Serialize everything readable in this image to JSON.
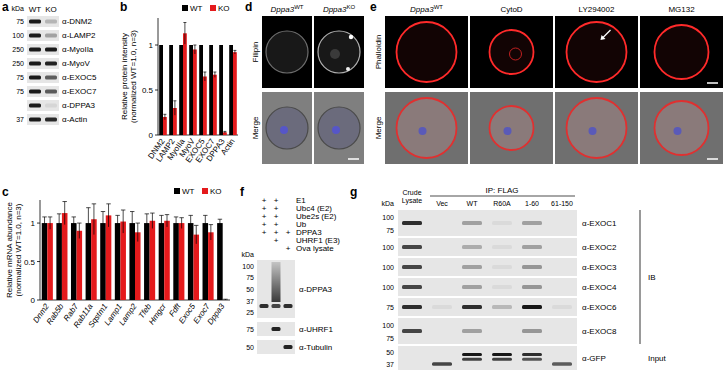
{
  "chart_data": [
    {
      "type": "bar",
      "categories": [
        "DNM2",
        "LAMP2",
        "MyoIIa",
        "MyoV",
        "EXOC5",
        "EXOC7",
        "DPPA3",
        "Actin"
      ],
      "series": [
        {
          "name": "WT",
          "color": "#000000",
          "values": [
            1,
            1,
            1,
            1,
            1,
            1,
            1,
            1
          ]
        },
        {
          "name": "KO",
          "color": "#e41a1c",
          "values": [
            0.2,
            0.3,
            1.13,
            0.95,
            0.65,
            0.67,
            0.03,
            0.92
          ],
          "errors": [
            0.03,
            0.08,
            0.12,
            0.05,
            0.05,
            0.03,
            0.01,
            0.02
          ]
        }
      ],
      "y_label": [
        "Relative protein intensity",
        "(normalized WT=1.0, n=3)"
      ],
      "ylim": [
        0,
        1.3
      ],
      "yticks": [
        0,
        0.5,
        1
      ],
      "legend": "top-right"
    },
    {
      "type": "bar",
      "categories": [
        "Dnm2",
        "Rab5b",
        "Rab7",
        "Rab11a",
        "Sqstm1",
        "Lamp1",
        "Lamp2",
        "Tfeb",
        "Hmgcr",
        "Fdft",
        "Exoc5",
        "Exoc7",
        "Dppa3"
      ],
      "series": [
        {
          "name": "WT",
          "color": "#000000",
          "values": [
            1,
            1,
            1,
            1,
            1,
            1,
            1,
            1,
            1,
            1,
            1,
            1,
            1
          ],
          "errors": [
            0.08,
            0.12,
            0.08,
            0.2,
            0.15,
            0.1,
            0.15,
            0.12,
            0.1,
            0.08,
            0.1,
            0.1,
            0.05
          ]
        },
        {
          "name": "KO",
          "color": "#e41a1c",
          "values": [
            1.0,
            1.13,
            0.9,
            1.05,
            1.1,
            1.02,
            0.88,
            1.03,
            1.03,
            1.0,
            0.85,
            0.88,
            0.0
          ],
          "errors": [
            0.08,
            0.15,
            0.1,
            0.2,
            0.15,
            0.15,
            0.12,
            0.1,
            0.08,
            0.07,
            0.12,
            0.1,
            0.01
          ]
        }
      ],
      "y_label": [
        "Relative mRNA abundance",
        "(normalized WT=1.0, n=3)"
      ],
      "ylim": [
        0,
        1.3
      ],
      "yticks": [
        0,
        0.5,
        1
      ],
      "legend": "top-right"
    }
  ],
  "figure": {
    "panel_labels": [
      "a",
      "b",
      "c",
      "d",
      "e",
      "f",
      "g"
    ],
    "a": {
      "kda": "kDa",
      "lanes": [
        "WT",
        "KO"
      ],
      "rows": [
        {
          "marker": 75,
          "antibody": "α-DNM2"
        },
        {
          "marker": 100,
          "antibody": "α-LAMP2"
        },
        {
          "marker": 250,
          "antibody": "α-MyoIIa"
        },
        {
          "marker": 250,
          "antibody": "α-MyoV"
        },
        {
          "marker": 75,
          "antibody": "α-EXOC5"
        },
        {
          "marker": 75,
          "antibody": "α-EXOC7"
        },
        {
          "marker": null,
          "antibody": "α-DPPA3"
        },
        {
          "marker": 37,
          "antibody": "α-Actin"
        }
      ]
    },
    "d": {
      "columns": [
        {
          "gene": "Dppa3",
          "sup": "WT"
        },
        {
          "gene": "Dppa3",
          "sup": "KO"
        }
      ],
      "rows": [
        "Filipin",
        "Merge"
      ]
    },
    "e": {
      "columns": [
        {
          "gene": "Dppa3",
          "sup": "WT"
        },
        {
          "text": "CytoD"
        },
        {
          "text": "LY294002"
        },
        {
          "text": "MG132"
        }
      ],
      "rows": [
        "Phalloidin",
        "Merge"
      ]
    },
    "f": {
      "conditions": [
        {
          "name": "E1",
          "lanes": [
            "+",
            "+",
            null
          ]
        },
        {
          "name": "Ubc4 (E2)",
          "lanes": [
            "+",
            "+",
            null
          ]
        },
        {
          "name": "Ube2s (E2)",
          "lanes": [
            "+",
            "+",
            null
          ]
        },
        {
          "name": "Ub",
          "lanes": [
            "+",
            "+",
            null
          ]
        },
        {
          "name": "DPPA3",
          "lanes": [
            "+",
            "+",
            "+"
          ]
        },
        {
          "name": "UHRF1 (E3)",
          "lanes": [
            null,
            "+",
            null
          ]
        },
        {
          "name": "Ova lysate",
          "lanes": [
            null,
            null,
            "+"
          ]
        }
      ],
      "kda": "kDa",
      "blots": [
        {
          "antibody": "α-DPPA3",
          "markers": [
            100,
            75,
            50,
            37,
            25
          ]
        },
        {
          "antibody": "α-UHRF1",
          "markers": [
            75
          ]
        },
        {
          "antibody": "α-Tubulin",
          "markers": [
            50
          ]
        }
      ]
    },
    "g": {
      "ip": "IP: FLAG",
      "crude": [
        "Crude",
        "Lysate"
      ],
      "lanes": [
        "Vec",
        "WT",
        "R60A",
        "1-60",
        "61-150"
      ],
      "kda": "kDa",
      "blots": [
        {
          "antibody": "α-EXOC1",
          "markers": [
            100,
            75
          ]
        },
        {
          "antibody": "α-EXOC2",
          "markers": [
            100
          ]
        },
        {
          "antibody": "α-EXOC3",
          "markers": [
            100
          ]
        },
        {
          "antibody": "α-EXOC4",
          "markers": [
            100
          ]
        },
        {
          "antibody": "α-EXOC6",
          "markers": [
            75
          ]
        },
        {
          "antibody": "α-EXOC8",
          "markers": [
            100,
            75
          ]
        },
        {
          "antibody": "α-GFP",
          "markers": [
            50,
            37
          ]
        }
      ],
      "ib": "IB",
      "input": "Input"
    }
  }
}
